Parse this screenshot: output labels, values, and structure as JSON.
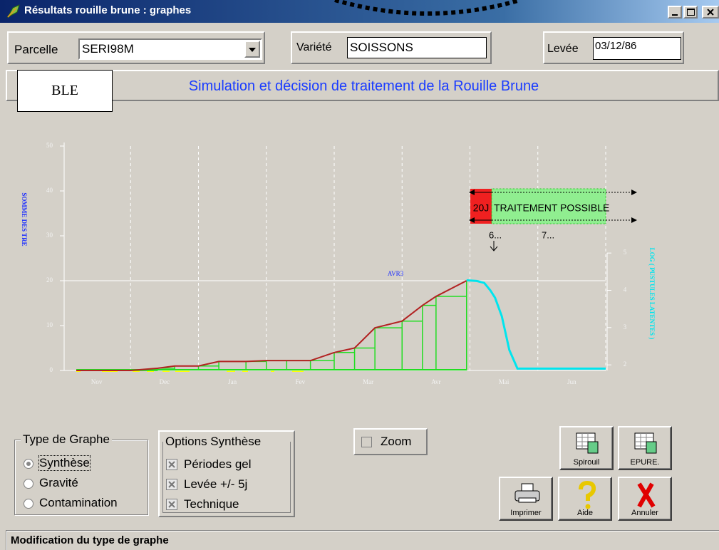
{
  "window": {
    "title": "Résultats rouille brune : graphes"
  },
  "fields": {
    "parcelle_label": "Parcelle",
    "parcelle_value": "SERI98M",
    "variete_label": "Variété",
    "variete_value": "SOISSONS",
    "levee_label": "Levée",
    "levee_value": "03/12/86"
  },
  "banner": {
    "crop": "BLE",
    "title": "Simulation et décision de traitement de la Rouille Brune"
  },
  "chart_data": {
    "type": "line",
    "ylabel": "SOMME DES TRE",
    "y2label": "LOG ( PUSTULES LATENTES )",
    "categories": [
      "Nov",
      "Dec",
      "Jan",
      "Fev",
      "Mar",
      "Avr",
      "Mai",
      "Jun"
    ],
    "xlim": [
      0,
      8
    ],
    "xticks": [
      1,
      2,
      3,
      4,
      5,
      6,
      7,
      8
    ],
    "ylim": [
      0,
      50
    ],
    "yticks": [
      0,
      10,
      20,
      30,
      40,
      50
    ],
    "y2lim": [
      1.85,
      7.87
    ],
    "y2ticks": [
      2,
      3,
      4,
      5
    ],
    "grid": true,
    "threshold": {
      "value": 20,
      "label": "AVR3"
    },
    "series": [
      {
        "color": "#b22222",
        "drop_color": "#22dd22",
        "x": [
          0.2,
          1.0,
          1.4,
          1.65,
          2.0,
          2.3,
          2.7,
          3.0,
          3.3,
          3.65,
          4.0,
          4.3,
          4.6,
          5.0,
          5.3,
          5.5,
          5.95
        ],
        "values": [
          0,
          0,
          0.5,
          1,
          1,
          2,
          2,
          2.2,
          2.2,
          2.2,
          4,
          5,
          9.5,
          11,
          14.5,
          16.5,
          20
        ]
      },
      {
        "color": "#00e5ee",
        "axis": "y2",
        "x": [
          5.95,
          6.1,
          6.21,
          6.3,
          6.37,
          6.47,
          6.58,
          6.7,
          8.0
        ],
        "values": [
          4.27,
          4.25,
          4.2,
          4.0,
          3.8,
          3.3,
          2.4,
          1.9,
          1.9
        ]
      }
    ],
    "treatment": {
      "delay_label": "20J",
      "label": "TRAITEMENT POSSIBLE",
      "marks": [
        "6...",
        "7..."
      ]
    }
  },
  "type_graphe": {
    "title": "Type de Graphe",
    "options": [
      "Synthèse",
      "Gravité",
      "Contamination"
    ],
    "selected": 0
  },
  "options_synthese": {
    "title": "Options Synthèse",
    "options": [
      "Périodes gel",
      "Levée +/- 5j",
      "Technique"
    ]
  },
  "zoom": "Zoom",
  "buttons": [
    "Spirouil",
    "EPURE.",
    "Imprimer",
    "Aide",
    "Annuler"
  ],
  "status": "Modification du type de graphe"
}
